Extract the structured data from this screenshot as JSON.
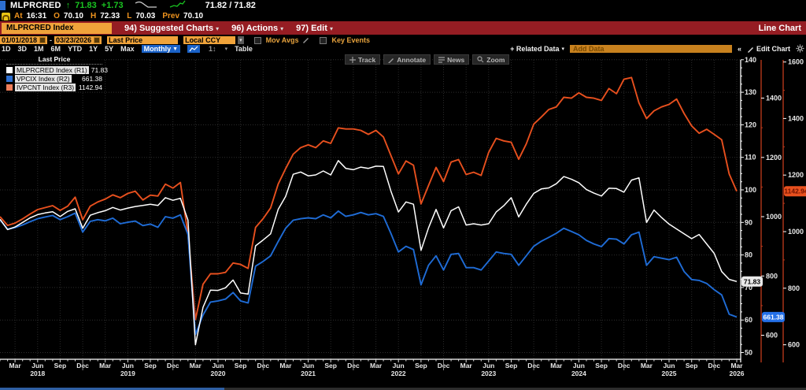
{
  "title_bar": {
    "ticker": "MLPRCRED",
    "arrow": "↑",
    "last": "71.83",
    "change": "+1.73",
    "bid_ask": "71.82 / 71.82"
  },
  "info_bar": {
    "at_label": "At",
    "at_time": "16:31",
    "o_label": "O",
    "open": "70.10",
    "h_label": "H",
    "high": "72.33",
    "l_label": "L",
    "low": "70.03",
    "prev_label": "Prev",
    "prev": "70.10"
  },
  "menu_bar": {
    "security": "MLPRCRED Index",
    "items": [
      {
        "label": "94) Suggested Charts"
      },
      {
        "label": "96) Actions"
      },
      {
        "label": "97) Edit"
      }
    ],
    "right_label": "Line Chart"
  },
  "settings": {
    "date_from": "01/01/2018",
    "date_to": "03/23/2026",
    "field": "Last Price",
    "currency": "Local CCY",
    "mov_avgs": "Mov Avgs",
    "key_events": "Key Events"
  },
  "period_bar": {
    "ranges": [
      "1D",
      "3D",
      "1M",
      "6M",
      "YTD",
      "1Y",
      "5Y",
      "Max"
    ],
    "frequency": "Monthly",
    "norm_icon": "1↕",
    "table": "Table",
    "related_data": "+ Related Data",
    "add_data_placeholder": "Add Data",
    "collapse": "«",
    "edit_chart": "Edit Chart"
  },
  "chart_toolbar": {
    "track": "Track",
    "annotate": "Annotate",
    "news": "News",
    "zoom": "Zoom"
  },
  "legend": {
    "header": "Last Price",
    "entries": [
      {
        "name": "MLPRCRED Index  (R1)",
        "value": "71.83",
        "color": "#ffffff"
      },
      {
        "name": "VPCIX Index  (R2)",
        "value": "661.38",
        "color": "#2d6fd1"
      },
      {
        "name": "IVPCNT Index  (R3)",
        "value": "1142.94",
        "color": "#ef7e5a"
      }
    ]
  },
  "chart_data": {
    "type": "line",
    "frequency": "monthly",
    "x_start": "2018-01",
    "x_end": "2026-03",
    "points": 99,
    "x_axis": {
      "quarter_labels": [
        "Mar",
        "Jun",
        "Sep",
        "Dec"
      ],
      "year_labels": [
        "2018",
        "2019",
        "2020",
        "2021",
        "2022",
        "2023",
        "2024",
        "2025",
        "2026"
      ]
    },
    "axes": {
      "R1": {
        "ticks": [
          140,
          130,
          120,
          110,
          100,
          90,
          80,
          70,
          60,
          50
        ],
        "color": "#ffffff",
        "label_color": "#e8e8e8",
        "bubble": {
          "text": "71.83",
          "value": 71.83,
          "bg": "#e9e9e9",
          "fg": "#000000"
        }
      },
      "R2": {
        "ticks": [
          1400,
          1200,
          1000,
          800,
          600
        ],
        "color": "#c23a1c",
        "label_color": "#e8e8e8",
        "bubble": {
          "text": "661.38",
          "value": 661.38,
          "bg": "#2470e8",
          "fg": "#ffffff"
        }
      },
      "R3": {
        "ticks": [
          1600,
          1400,
          1200,
          1000,
          800,
          600
        ],
        "color": "#c23a1c",
        "label_color": "#e8e8e8",
        "bubble": {
          "text": "1142.94",
          "value": 1142.94,
          "bg": "#e8501e",
          "fg": "#701200"
        }
      }
    },
    "series": [
      {
        "name": "MLPRCRED Index (R1)",
        "axis": "R1",
        "color": "#ffffff",
        "last": 71.83,
        "values": [
          91.0,
          87.8,
          88.6,
          90.0,
          91.4,
          92.4,
          92.9,
          93.3,
          91.8,
          93.4,
          94.2,
          88.2,
          92.2,
          93.0,
          93.6,
          94.6,
          93.8,
          94.4,
          94.9,
          95.2,
          95.6,
          95.2,
          97.6,
          96.8,
          97.4,
          90.7,
          52.4,
          63.9,
          69.2,
          69.1,
          69.9,
          72.3,
          68.3,
          68.0,
          82.8,
          84.6,
          86.5,
          94.0,
          98.0,
          104.8,
          105.5,
          104.3,
          104.6,
          105.8,
          104.6,
          109.0,
          106.6,
          106.2,
          107.0,
          106.6,
          107.3,
          107.2,
          99.6,
          93.2,
          96.3,
          95.6,
          81.4,
          88.3,
          94.0,
          88.3,
          93.6,
          94.8,
          89.2,
          89.6,
          89.2,
          89.6,
          93.2,
          95.1,
          97.6,
          91.7,
          95.6,
          98.9,
          100.3,
          100.6,
          101.9,
          104.1,
          103.3,
          102.2,
          100.1,
          99.0,
          98.1,
          100.5,
          100.4,
          99.3,
          103.0,
          103.7,
          90.0,
          93.8,
          91.5,
          89.5,
          88.0,
          86.5,
          85.0,
          86.3,
          83.4,
          80.5,
          74.9,
          72.5,
          71.83
        ]
      },
      {
        "name": "VPCIX Index (R2)",
        "axis": "R2",
        "color": "#1f6cd6",
        "last": 661.38,
        "values": [
          990,
          958,
          963,
          972,
          983,
          993,
          999,
          1004,
          990,
          1000,
          1012,
          948,
          984,
          990,
          986,
          995,
          976,
          981,
          985,
          970,
          975,
          964,
          1000,
          995,
          1006,
          940,
          602,
          668,
          712,
          716,
          722,
          744,
          716,
          709,
          833,
          849,
          868,
          916,
          961,
          988,
          993,
          996,
          993,
          1006,
          996,
          1019,
          1001,
          1006,
          1014,
          1006,
          1010,
          1001,
          943,
          881,
          900,
          889,
          770,
          836,
          868,
          820,
          873,
          876,
          828,
          828,
          820,
          850,
          881,
          876,
          873,
          836,
          868,
          900,
          917,
          930,
          944,
          961,
          950,
          939,
          920,
          908,
          899,
          926,
          924,
          908,
          939,
          948,
          836,
          865,
          860,
          855,
          863,
          815,
          788,
          785,
          775,
          754,
          736,
          671,
          661.38
        ]
      },
      {
        "name": "IVPCNT Index (R3)",
        "axis": "R3",
        "color": "#e8501e",
        "last": 1142.94,
        "values": [
          1053,
          1022,
          1030,
          1045,
          1062,
          1078,
          1085,
          1092,
          1075,
          1090,
          1122,
          1042,
          1090,
          1105,
          1115,
          1130,
          1120,
          1135,
          1143,
          1112,
          1129,
          1126,
          1168,
          1154,
          1174,
          990,
          689,
          814,
          851,
          851,
          856,
          889,
          884,
          870,
          1015,
          1046,
          1084,
          1168,
          1223,
          1274,
          1297,
          1307,
          1297,
          1321,
          1312,
          1367,
          1363,
          1363,
          1358,
          1344,
          1358,
          1335,
          1269,
          1204,
          1250,
          1235,
          1098,
          1163,
          1227,
          1177,
          1246,
          1255,
          1202,
          1210,
          1199,
          1280,
          1330,
          1321,
          1316,
          1256,
          1310,
          1380,
          1405,
          1432,
          1441,
          1475,
          1472,
          1491,
          1475,
          1472,
          1464,
          1506,
          1488,
          1539,
          1545,
          1455,
          1400,
          1427,
          1441,
          1450,
          1469,
          1418,
          1374,
          1348,
          1362,
          1344,
          1325,
          1204,
          1142.94
        ]
      }
    ]
  }
}
